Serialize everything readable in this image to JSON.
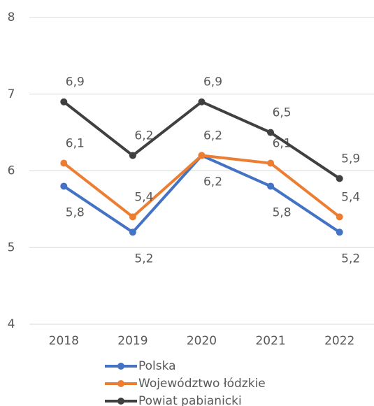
{
  "chart_data": {
    "type": "line",
    "categories": [
      "2018",
      "2019",
      "2020",
      "2021",
      "2022"
    ],
    "series": [
      {
        "name": "Polska",
        "color": "#4472c4",
        "values": [
          5.8,
          5.2,
          6.2,
          5.8,
          5.2
        ],
        "value_labels": [
          "5,8",
          "5,2",
          "6,2",
          "5,8",
          "5,2"
        ]
      },
      {
        "name": "Województwo łódzkie",
        "color": "#ed7d31",
        "values": [
          6.1,
          5.4,
          6.2,
          6.1,
          5.4
        ],
        "value_labels": [
          "6,1",
          "5,4",
          "6,2",
          "6,1",
          "5,4"
        ]
      },
      {
        "name": "Powiat pabianicki",
        "color": "#404040",
        "values": [
          6.9,
          6.2,
          6.9,
          6.5,
          5.9
        ],
        "value_labels": [
          "6,9",
          "6,2",
          "6,9",
          "6,5",
          "5,9"
        ]
      }
    ],
    "ylim": [
      4,
      8
    ],
    "yticks": [
      4,
      5,
      6,
      7,
      8
    ],
    "grid": true
  }
}
